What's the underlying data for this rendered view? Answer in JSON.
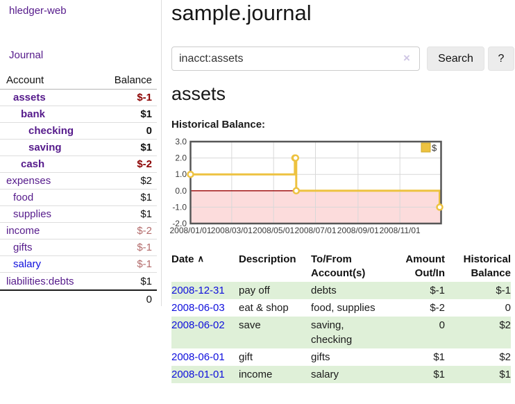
{
  "colors": {
    "visited_link_purple": "#551a8b",
    "link_blue": "#0e0edd",
    "negative_strong": "#8b0000",
    "negative_soft": "#b36b6b",
    "row_stripe_green": "#dff0d8",
    "chart_gold": "#edc240",
    "chart_negative_fill": "#fcdcdc",
    "chart_zero_line": "#990000"
  },
  "sidebar": {
    "brand": "hledger-web",
    "journal_link": "Journal",
    "accounts_table": {
      "col_account": "Account",
      "col_balance": "Balance",
      "rows": [
        {
          "name": "assets",
          "balance": "$-1",
          "indent": 19,
          "bold": true,
          "neg": "strong"
        },
        {
          "name": "bank",
          "balance": "$1",
          "indent": 30,
          "bold": true
        },
        {
          "name": "checking",
          "balance": "0",
          "indent": 41,
          "bold": true
        },
        {
          "name": "saving",
          "balance": "$1",
          "indent": 41,
          "bold": true
        },
        {
          "name": "cash",
          "balance": "$-2",
          "indent": 30,
          "bold": true,
          "neg": "strong"
        },
        {
          "name": "expenses",
          "balance": "$2",
          "indent": 9
        },
        {
          "name": "food",
          "balance": "$1",
          "indent": 19
        },
        {
          "name": "supplies",
          "balance": "$1",
          "indent": 19
        },
        {
          "name": "income",
          "balance": "$-2",
          "indent": 9,
          "neg": "soft"
        },
        {
          "name": "gifts",
          "balance": "$-1",
          "indent": 19,
          "neg": "soft"
        },
        {
          "name": "salary",
          "balance": "$-1",
          "indent": 19,
          "neg": "soft",
          "link_blue": true
        },
        {
          "name": "liabilities:debts",
          "balance": "$1",
          "indent": 9
        }
      ],
      "total": "0"
    }
  },
  "header": {
    "title": "sample.journal"
  },
  "search": {
    "value": "inacct:assets",
    "clear_icon": "×",
    "search_label": "Search",
    "help_label": "?"
  },
  "account_page": {
    "heading": "assets",
    "chart_label": "Historical Balance:"
  },
  "chart_data": {
    "type": "line",
    "subtype": "step-with-markers",
    "title": "Historical Balance:",
    "series": [
      {
        "name": "$",
        "points": [
          [
            "2008-01-01",
            1
          ],
          [
            "2008-06-01",
            2
          ],
          [
            "2008-06-02",
            2
          ],
          [
            "2008-06-03",
            0
          ],
          [
            "2008-12-31",
            -1
          ]
        ]
      }
    ],
    "x_range": [
      "2008-01-01",
      "2008-12-31"
    ],
    "ylim": [
      -2,
      3
    ],
    "y_ticks": [
      "3.0",
      "2.0",
      "1.0",
      "0.0",
      "-1.0",
      "-2.0"
    ],
    "x_ticks": [
      "2008/01/01",
      "2008/03/01",
      "2008/05/01",
      "2008/07/01",
      "2008/09/01",
      "2008/11/01"
    ],
    "legend": {
      "label": "$",
      "position": "top-right"
    },
    "grid": true
  },
  "register_table": {
    "headers": {
      "date": "Date",
      "sort_icon": "∧",
      "description": "Description",
      "tofrom": "To/From Account(s)",
      "amount": "Amount Out/In",
      "balance": "Historical Balance"
    },
    "rows": [
      {
        "date": "2008-12-31",
        "description": "pay off",
        "accounts": "debts",
        "amount": "$-1",
        "balance": "$-1",
        "amount_neg": true,
        "balance_neg": true,
        "shaded": true
      },
      {
        "date": "2008-06-03",
        "description": "eat & shop",
        "accounts": "food, supplies",
        "amount": "$-2",
        "balance": "0",
        "amount_neg": true,
        "shaded": false
      },
      {
        "date": "2008-06-02",
        "description": "save",
        "accounts": "saving,\nchecking",
        "amount": "0",
        "balance": "$2",
        "shaded": true
      },
      {
        "date": "2008-06-01",
        "description": "gift",
        "accounts": "gifts",
        "amount": "$1",
        "balance": "$2",
        "shaded": false
      },
      {
        "date": "2008-01-01",
        "description": "income",
        "accounts": "salary",
        "amount": "$1",
        "balance": "$1",
        "shaded": true
      }
    ]
  }
}
